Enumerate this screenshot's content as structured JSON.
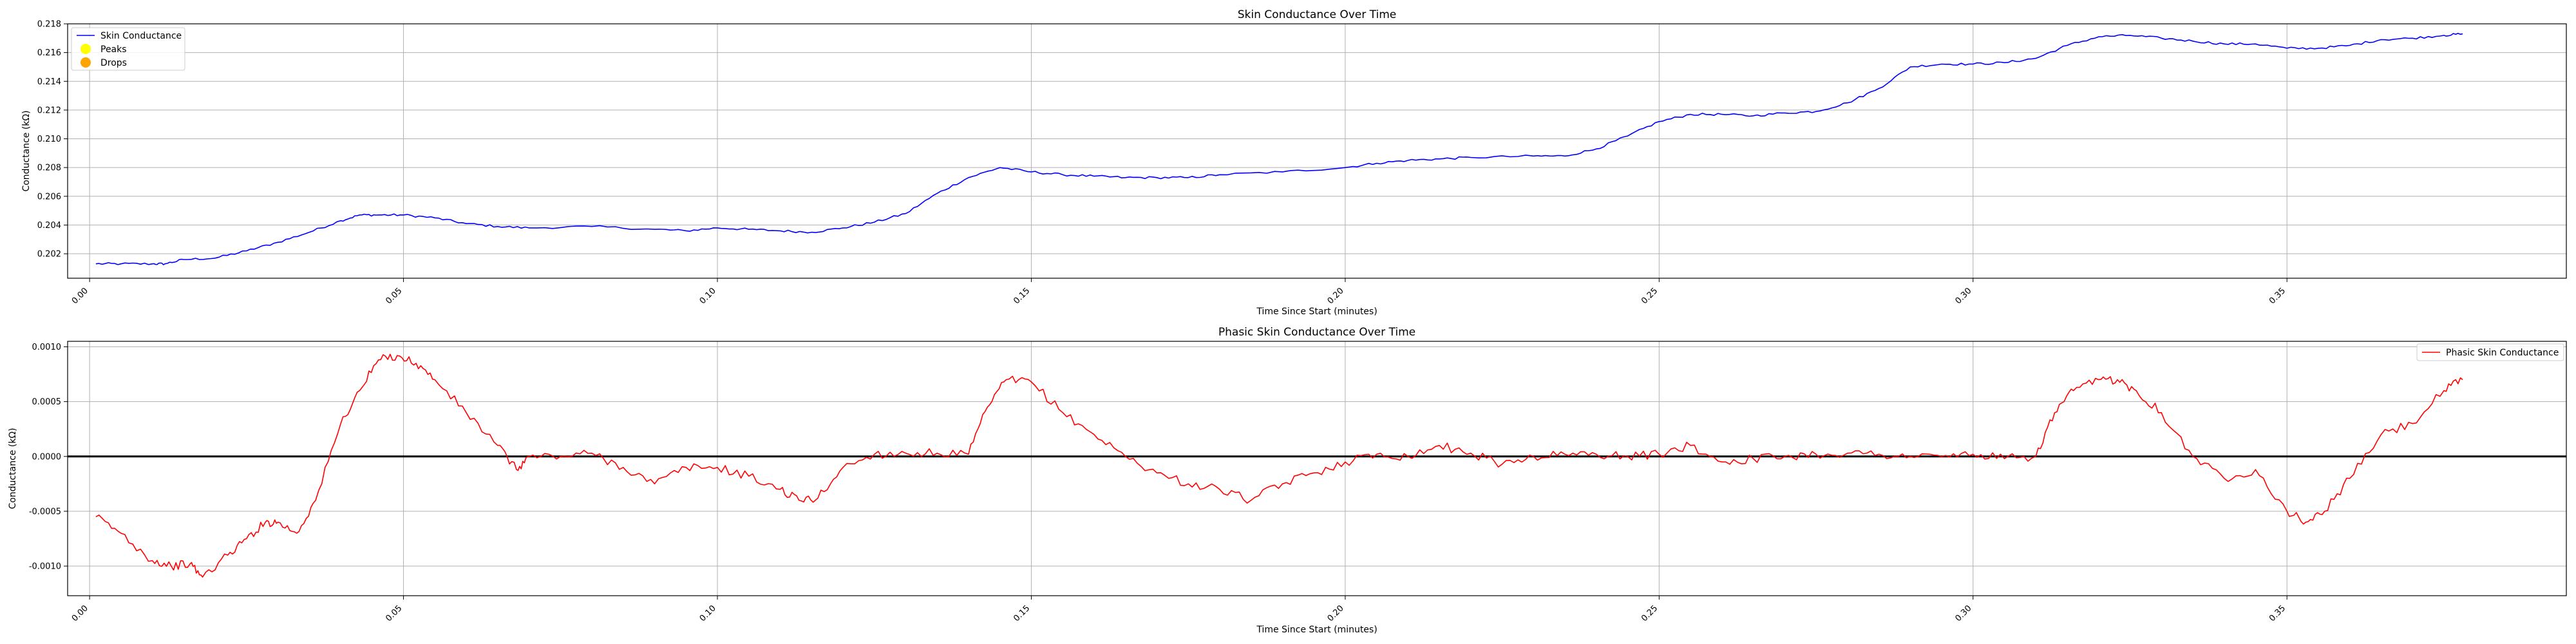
{
  "chart_data": [
    {
      "type": "line",
      "title": "Skin Conductance Over Time",
      "xlabel": "Time Since Start (minutes)",
      "ylabel": "Conductance (kΩ)",
      "xlim": [
        -0.0035,
        0.3945
      ],
      "ylim": [
        0.2003,
        0.218
      ],
      "x_ticks": [
        "0.00",
        "0.05",
        "0.10",
        "0.15",
        "0.20",
        "0.25",
        "0.30",
        "0.35"
      ],
      "y_ticks": [
        "0.202",
        "0.204",
        "0.206",
        "0.208",
        "0.210",
        "0.212",
        "0.214",
        "0.216",
        "0.218"
      ],
      "grid": true,
      "legend_position": "top-left",
      "legend": [
        {
          "label": "Skin Conductance",
          "marker": "line",
          "color": "#0000ff"
        },
        {
          "label": "Peaks",
          "marker": "dot",
          "color": "#ffff00"
        },
        {
          "label": "Drops",
          "marker": "dot",
          "color": "#ffa500"
        }
      ],
      "series": [
        {
          "name": "Skin Conductance",
          "color": "#0000ff",
          "x": [
            0.001,
            0.005,
            0.01,
            0.012,
            0.015,
            0.02,
            0.025,
            0.03,
            0.035,
            0.04,
            0.043,
            0.046,
            0.05,
            0.055,
            0.06,
            0.065,
            0.07,
            0.08,
            0.09,
            0.095,
            0.1,
            0.105,
            0.11,
            0.115,
            0.12,
            0.125,
            0.13,
            0.135,
            0.14,
            0.145,
            0.15,
            0.155,
            0.16,
            0.165,
            0.17,
            0.175,
            0.18,
            0.19,
            0.2,
            0.205,
            0.21,
            0.215,
            0.22,
            0.23,
            0.235,
            0.24,
            0.245,
            0.25,
            0.255,
            0.26,
            0.265,
            0.27,
            0.275,
            0.28,
            0.285,
            0.29,
            0.295,
            0.3,
            0.305,
            0.31,
            0.315,
            0.32,
            0.325,
            0.33,
            0.335,
            0.34,
            0.345,
            0.35,
            0.355,
            0.36,
            0.365,
            0.37,
            0.375,
            0.378
          ],
          "y": [
            0.2013,
            0.2013,
            0.2013,
            0.2013,
            0.2016,
            0.2017,
            0.2022,
            0.2028,
            0.2035,
            0.2043,
            0.2047,
            0.2047,
            0.2047,
            0.2045,
            0.2041,
            0.2039,
            0.2038,
            0.2039,
            0.2037,
            0.2036,
            0.2038,
            0.2037,
            0.2036,
            0.2035,
            0.2038,
            0.2042,
            0.2048,
            0.2062,
            0.2073,
            0.208,
            0.2077,
            0.2075,
            0.2074,
            0.2073,
            0.2073,
            0.2073,
            0.2075,
            0.2077,
            0.208,
            0.2083,
            0.2085,
            0.2086,
            0.2087,
            0.2088,
            0.2088,
            0.2093,
            0.2102,
            0.2112,
            0.2117,
            0.2117,
            0.2116,
            0.2118,
            0.2119,
            0.2125,
            0.2135,
            0.215,
            0.2152,
            0.2152,
            0.2153,
            0.2156,
            0.2165,
            0.2171,
            0.2172,
            0.217,
            0.2168,
            0.2166,
            0.2166,
            0.2163,
            0.2163,
            0.2165,
            0.2169,
            0.217,
            0.2172,
            0.2173
          ],
          "noise": 8e-05
        }
      ]
    },
    {
      "type": "line",
      "title": "Phasic Skin Conductance Over Time",
      "xlabel": "Time Since Start (minutes)",
      "ylabel": "Conductance (kΩ)",
      "xlim": [
        -0.0035,
        0.3945
      ],
      "ylim": [
        -0.00127,
        0.00105
      ],
      "x_ticks": [
        "0.00",
        "0.05",
        "0.10",
        "0.15",
        "0.20",
        "0.25",
        "0.30",
        "0.35"
      ],
      "y_ticks": [
        "-0.0010",
        "-0.0005",
        "0.0000",
        "0.0005",
        "0.0010"
      ],
      "zero_line": 0,
      "grid": true,
      "legend_position": "top-right",
      "legend": [
        {
          "label": "Phasic Skin Conductance",
          "marker": "line",
          "color": "#ff0000"
        }
      ],
      "series": [
        {
          "name": "Phasic Skin Conductance",
          "color": "#ff0000",
          "x": [
            0.001,
            0.005,
            0.01,
            0.013,
            0.016,
            0.018,
            0.022,
            0.025,
            0.028,
            0.03,
            0.033,
            0.036,
            0.04,
            0.043,
            0.046,
            0.049,
            0.052,
            0.055,
            0.06,
            0.065,
            0.068,
            0.07,
            0.075,
            0.08,
            0.085,
            0.09,
            0.095,
            0.1,
            0.105,
            0.11,
            0.113,
            0.116,
            0.12,
            0.125,
            0.13,
            0.135,
            0.14,
            0.143,
            0.146,
            0.15,
            0.155,
            0.16,
            0.165,
            0.17,
            0.175,
            0.18,
            0.185,
            0.19,
            0.195,
            0.2,
            0.205,
            0.21,
            0.215,
            0.22,
            0.225,
            0.23,
            0.235,
            0.24,
            0.245,
            0.25,
            0.255,
            0.26,
            0.265,
            0.27,
            0.275,
            0.28,
            0.285,
            0.29,
            0.295,
            0.3,
            0.305,
            0.31,
            0.313,
            0.316,
            0.32,
            0.323,
            0.326,
            0.33,
            0.335,
            0.34,
            0.345,
            0.35,
            0.353,
            0.356,
            0.36,
            0.365,
            0.37,
            0.375,
            0.378
          ],
          "y": [
            -0.00055,
            -0.0007,
            -0.00095,
            -0.001,
            -0.00098,
            -0.0011,
            -0.0009,
            -0.00075,
            -0.0006,
            -0.0006,
            -0.0007,
            -0.0004,
            0.0003,
            0.0006,
            0.00088,
            0.00092,
            0.00085,
            0.0007,
            0.0004,
            0.0001,
            -0.00012,
            0.0,
            0.0,
            3e-05,
            -0.0001,
            -0.00025,
            -0.0001,
            -0.0001,
            -0.00018,
            -0.0003,
            -0.0004,
            -0.00038,
            -0.0001,
            2e-05,
            3e-05,
            3e-05,
            2e-05,
            0.00045,
            0.0007,
            0.00068,
            0.0004,
            0.0002,
            0.0,
            -0.00015,
            -0.00025,
            -0.0003,
            -0.0004,
            -0.00025,
            -0.00015,
            -5e-05,
            2e-05,
            0.0,
            0.0001,
            3e-05,
            -7e-05,
            0.0,
            2e-05,
            2e-05,
            0.0,
            2e-05,
            0.0001,
            -5e-05,
            -2e-05,
            0.0,
            2e-05,
            3e-05,
            2e-05,
            0.0,
            0.0,
            2e-05,
            -2e-05,
            0.0,
            0.0004,
            0.0006,
            0.0007,
            0.0007,
            0.0006,
            0.0004,
            0.0,
            -0.0002,
            -0.00012,
            -0.0005,
            -0.0006,
            -0.0005,
            -0.0002,
            0.0002,
            0.0003,
            0.0006,
            0.0007
          ],
          "noise": 4e-05
        }
      ]
    }
  ]
}
